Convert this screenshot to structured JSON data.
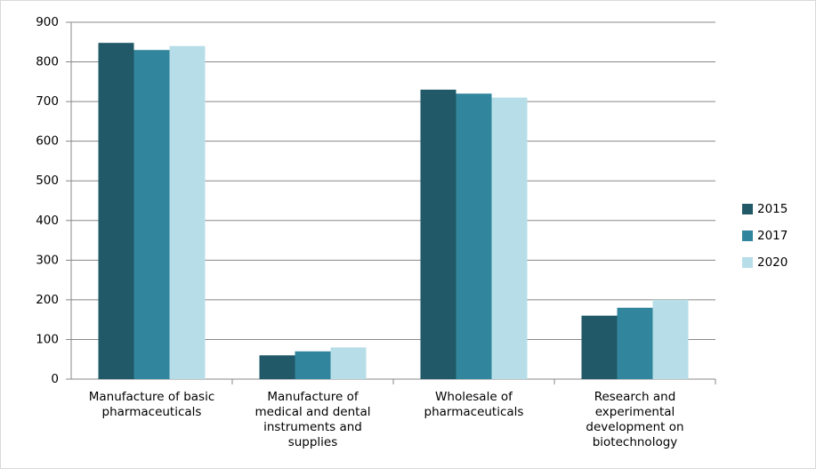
{
  "chart_data": {
    "type": "bar",
    "categories": [
      "Manufacture of basic\npharmaceuticals",
      "Manufacture of\nmedical and dental\ninstruments and\nsupplies",
      "Wholesale of\npharmaceuticals",
      "Research and\nexperimental\ndevelopment on\nbiotechnology"
    ],
    "series": [
      {
        "name": "2015",
        "color": "#215968",
        "values": [
          848,
          60,
          730,
          160
        ]
      },
      {
        "name": "2017",
        "color": "#31859c",
        "values": [
          830,
          70,
          720,
          180
        ]
      },
      {
        "name": "2020",
        "color": "#b7dee8",
        "values": [
          840,
          80,
          710,
          200
        ]
      }
    ],
    "ylim": [
      0,
      900
    ],
    "yticks": [
      0,
      100,
      200,
      300,
      400,
      500,
      600,
      700,
      800,
      900
    ],
    "grid": true,
    "legend": "right"
  }
}
